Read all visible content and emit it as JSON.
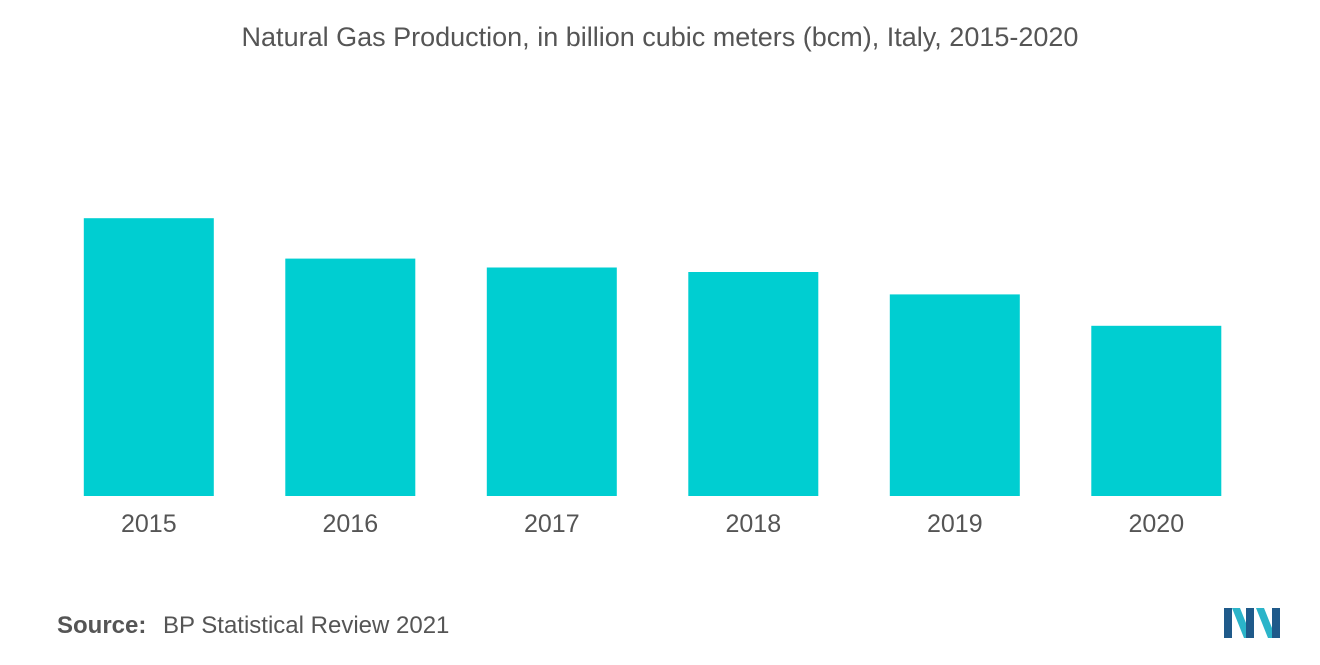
{
  "chart_data": {
    "type": "bar",
    "title": "Natural Gas Production, in billion cubic meters (bcm), Italy, 2015-2020",
    "categories": [
      "2015",
      "2016",
      "2017",
      "2018",
      "2019",
      "2020"
    ],
    "values": [
      6.2,
      5.3,
      5.1,
      5.0,
      4.5,
      3.8
    ],
    "xlabel": "",
    "ylabel": "",
    "ylim": [
      0,
      7.5
    ],
    "grid": false,
    "legend": "none",
    "bar_color": "#00CED1"
  },
  "source": {
    "label": "Source:",
    "text": "BP Statistical Review 2021"
  },
  "logo": {
    "icon": "mordor-intelligence-logo"
  }
}
